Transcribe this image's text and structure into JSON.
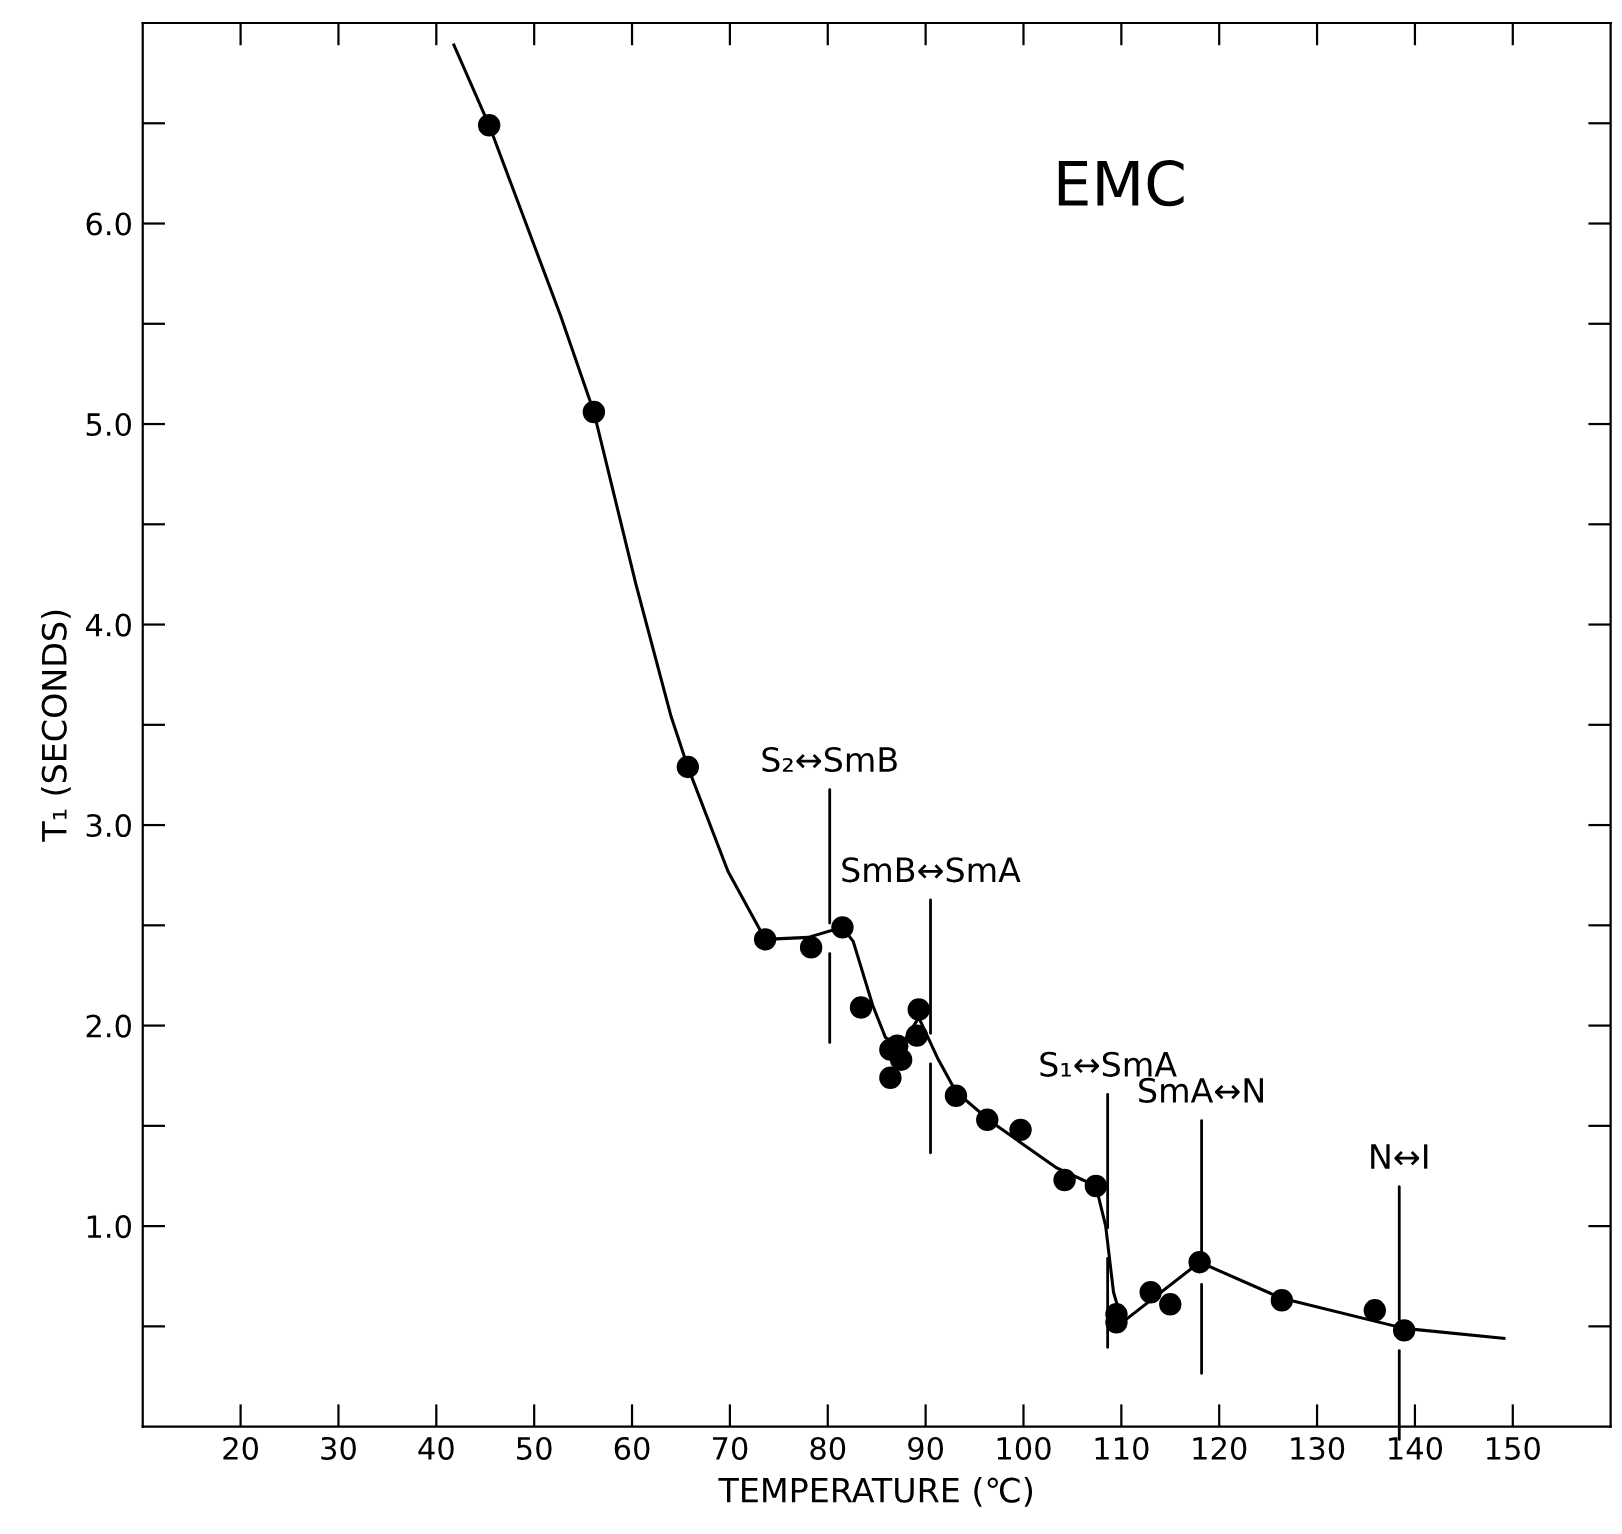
{
  "chart_data": {
    "type": "scatter",
    "xlabel": "TEMPERATURE (℃)",
    "ylabel": "T₁ (SECONDS)",
    "xlim": [
      10,
      160
    ],
    "ylim": [
      0,
      7
    ],
    "xticks": [
      20,
      30,
      40,
      50,
      60,
      70,
      80,
      90,
      100,
      110,
      120,
      130,
      140,
      150
    ],
    "yticks": [
      {
        "value": 0.5,
        "label": null
      },
      {
        "value": 1,
        "label": "1.0"
      },
      {
        "value": 1.5,
        "label": null
      },
      {
        "value": 2,
        "label": "2.0"
      },
      {
        "value": 2.5,
        "label": null
      },
      {
        "value": 3,
        "label": "3.0"
      },
      {
        "value": 3.5,
        "label": null
      },
      {
        "value": 4,
        "label": "4.0"
      },
      {
        "value": 4.5,
        "label": null
      },
      {
        "value": 5,
        "label": "5.0"
      },
      {
        "value": 5.5,
        "label": null
      },
      {
        "value": 6,
        "label": "6.0"
      },
      {
        "value": 6.5,
        "label": null
      }
    ],
    "grid": false,
    "legend": false,
    "series": [
      {
        "type": "line",
        "color": "#000000",
        "marker": "none",
        "line_style": "solid",
        "x": [
          41.8,
          45.4,
          52.7,
          56.1,
          60.4,
          64.0,
          65.7,
          69.8,
          73.6,
          78.0,
          81.5,
          82.6,
          84.6,
          85.9,
          87.5,
          89.3,
          91.2,
          93.1,
          96.7,
          103.4,
          107.4,
          108.4,
          109.2,
          110.1,
          118.0,
          126.4,
          138.9,
          149.1
        ],
        "values": [
          6.89,
          6.49,
          5.54,
          5.06,
          4.2,
          3.54,
          3.29,
          2.77,
          2.43,
          2.44,
          2.49,
          2.42,
          2.1,
          1.94,
          1.9,
          2.04,
          1.84,
          1.67,
          1.52,
          1.29,
          1.2,
          1.0,
          0.67,
          0.52,
          0.82,
          0.64,
          0.49,
          0.44
        ]
      },
      {
        "color": "#000000",
        "marker": "circle",
        "x": [
          45.4,
          56.1,
          65.7,
          73.6,
          78.3,
          81.5,
          83.4,
          86.4,
          86.4,
          87.1,
          87.5,
          89.1,
          89.3,
          93.1,
          96.3,
          99.7,
          104.2,
          107.4,
          109.5,
          109.5,
          113.0,
          115.0,
          118.0,
          126.4,
          135.9,
          138.9
        ],
        "values": [
          6.49,
          5.06,
          3.29,
          2.43,
          2.39,
          2.49,
          2.09,
          1.88,
          1.74,
          1.9,
          1.83,
          1.95,
          2.08,
          1.65,
          1.53,
          1.48,
          1.23,
          1.2,
          0.56,
          0.52,
          0.67,
          0.61,
          0.82,
          0.63,
          0.58,
          0.48
        ]
      }
    ],
    "annotations": [
      "EMC",
      {
        "text": "S₂↔SmB",
        "x": 80.2,
        "y": 2.47
      },
      {
        "text": "SmB↔SmA",
        "x": 90.5,
        "y": 1.92
      },
      {
        "text": "S₁↔SmA",
        "x": 108.6,
        "y": 0.95
      },
      {
        "text": "SmA↔N",
        "x": 118.2,
        "y": 0.82
      },
      {
        "text": "N↔I",
        "x": 138.4,
        "y": 0.49
      }
    ]
  }
}
